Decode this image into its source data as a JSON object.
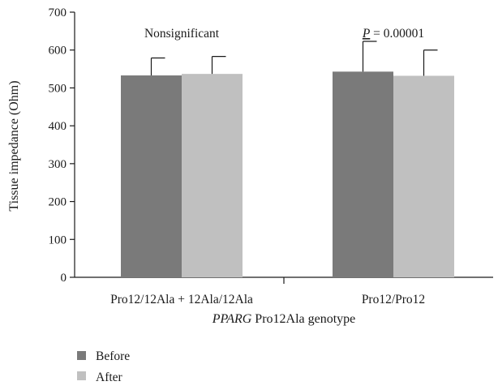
{
  "chart_data": {
    "type": "bar",
    "categories": [
      "Pro12/12Ala + 12Ala/12Ala",
      "Pro12/Pro12"
    ],
    "series": [
      {
        "name": "Before",
        "values": [
          533,
          543
        ],
        "errors": [
          46,
          80
        ],
        "color": "#7a7a7a"
      },
      {
        "name": "After",
        "values": [
          537,
          532
        ],
        "errors": [
          46,
          68
        ],
        "color": "#c0c0c0"
      }
    ],
    "xlabel_italic": "PPARG",
    "xlabel_rest": " Pro12Ala genotype",
    "ylabel": "Tissue impedance (Ohm)",
    "ylim": [
      0,
      700
    ],
    "yticks": [
      0,
      100,
      200,
      300,
      400,
      500,
      600,
      700
    ],
    "annotations": [
      {
        "category": 0,
        "text": "Nonsignificant"
      },
      {
        "category": 1,
        "p_label": "P",
        "text": " = 0.00001"
      }
    ],
    "grid": false,
    "legend_position": "bottom-left"
  }
}
